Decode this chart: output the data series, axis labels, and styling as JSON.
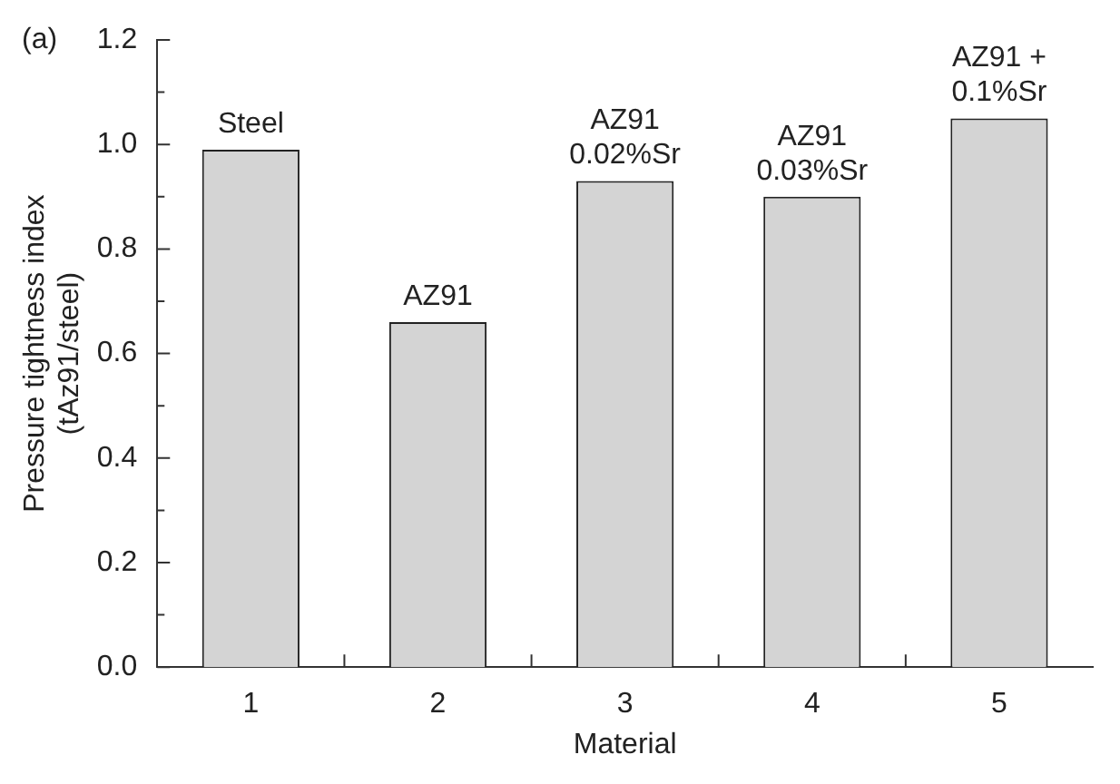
{
  "chart_data": {
    "type": "bar",
    "xlabel": "Material",
    "ylabel": "Pressure tightness index\n(tAz91/steel)",
    "categories": [
      "1",
      "2",
      "3",
      "4",
      "5"
    ],
    "values": [
      0.99,
      0.66,
      0.93,
      0.9,
      1.05
    ],
    "color": "#d4d4d4",
    "ylim": [
      0,
      1.2
    ],
    "yticks": [
      {
        "value": 0,
        "label": "0.0"
      },
      {
        "value": 0.1,
        "label": null
      },
      {
        "value": 0.2,
        "label": "0.2"
      },
      {
        "value": 0.3,
        "label": null
      },
      {
        "value": 0.4,
        "label": "0.4"
      },
      {
        "value": 0.5,
        "label": null
      },
      {
        "value": 0.6,
        "label": "0.6"
      },
      {
        "value": 0.7,
        "label": null
      },
      {
        "value": 0.8,
        "label": "0.8"
      },
      {
        "value": 0.9,
        "label": null
      },
      {
        "value": 1,
        "label": "1.0"
      },
      {
        "value": 1.1,
        "label": null
      },
      {
        "value": 1.2,
        "label": "1.2"
      }
    ],
    "annotations": [
      "(a)",
      {
        "text": "Steel",
        "x": "1",
        "y": 0.99
      },
      {
        "text": "AZ91",
        "x": "2",
        "y": 0.66
      },
      {
        "text": "AZ91\n0.02%Sr",
        "x": "3",
        "y": 0.93
      },
      {
        "text": "AZ91\n0.03%Sr",
        "x": "4",
        "y": 0.9
      },
      {
        "text": "AZ91 +\n0.1%Sr",
        "x": "5",
        "y": 1.05
      }
    ]
  }
}
